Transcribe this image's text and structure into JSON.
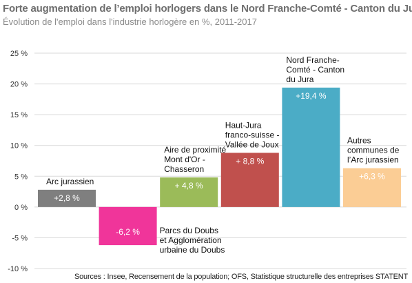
{
  "chart_data": {
    "type": "bar",
    "title": "Forte augmentation de l’emploi horlogers dans le Nord Franche-Comté - Canton du Jura",
    "subtitle": "Évolution de l'emploi dans l'industrie horlogère en %, 2011-2017",
    "source": "Sources : Insee, Recensement de la population; OFS, Statistique structurelle des entreprises STATENT",
    "ylim": [
      -10,
      25
    ],
    "yticks": [
      25,
      20,
      15,
      10,
      5,
      0,
      -5,
      -10
    ],
    "ytick_labels": [
      "25 %",
      "20 %",
      "15 %",
      "10 %",
      "5 %",
      "0 %",
      "-5 %",
      "-10 %"
    ],
    "grid": true,
    "bars": [
      {
        "category": [
          "Arc jurassien"
        ],
        "value": 2.8,
        "value_label": "+2,8 %",
        "color": "#7f7f7f",
        "label_side": "above"
      },
      {
        "category": [
          "Parcs du Doubs",
          "et Agglomération",
          "urbaine du Doubs"
        ],
        "value": -6.2,
        "value_label": "-6,2 %",
        "color": "#f0359a",
        "label_side": "right"
      },
      {
        "category": [
          "Aire de proximité",
          "Mont d'Or -",
          "Chasseron"
        ],
        "value": 4.8,
        "value_label": "+ 4,8 %",
        "color": "#9bbb59",
        "label_side": "above"
      },
      {
        "category": [
          "Haut-Jura",
          "franco-suisse -",
          "Vallée de Joux"
        ],
        "value": 8.8,
        "value_label": "+ 8,8 %",
        "color": "#c0504d",
        "label_side": "above"
      },
      {
        "category": [
          "Nord Franche-",
          "Comté - Canton",
          "du Jura"
        ],
        "value": 19.4,
        "value_label": "+19,4 %",
        "color": "#4bacc6",
        "label_side": "above"
      },
      {
        "category": [
          "Autres",
          "communes de",
          "l’Arc jurassien"
        ],
        "value": 6.3,
        "value_label": "+6,3 %",
        "color": "#fbcd95",
        "label_side": "above"
      }
    ]
  }
}
